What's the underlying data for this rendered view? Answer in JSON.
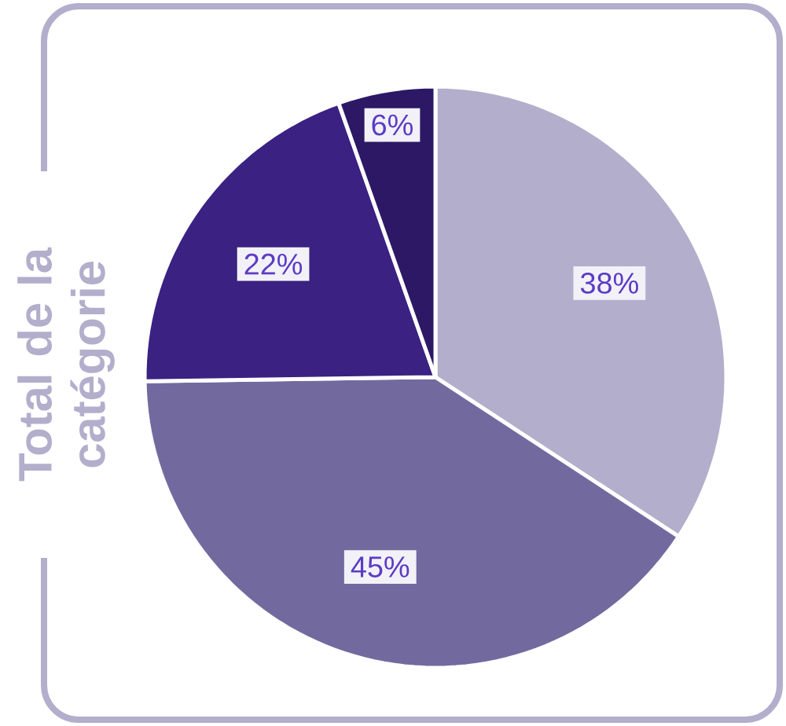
{
  "chart_data": {
    "type": "pie",
    "title": "Total de la catégorie",
    "categories": [
      null,
      null,
      null,
      null
    ],
    "values": [
      38,
      45,
      22,
      6
    ],
    "colors": [
      "#b3aecb",
      "#726a9f",
      "#3a2182",
      "#2d1866"
    ],
    "value_labels": [
      "38%",
      "45%",
      "22%",
      "6%"
    ]
  }
}
